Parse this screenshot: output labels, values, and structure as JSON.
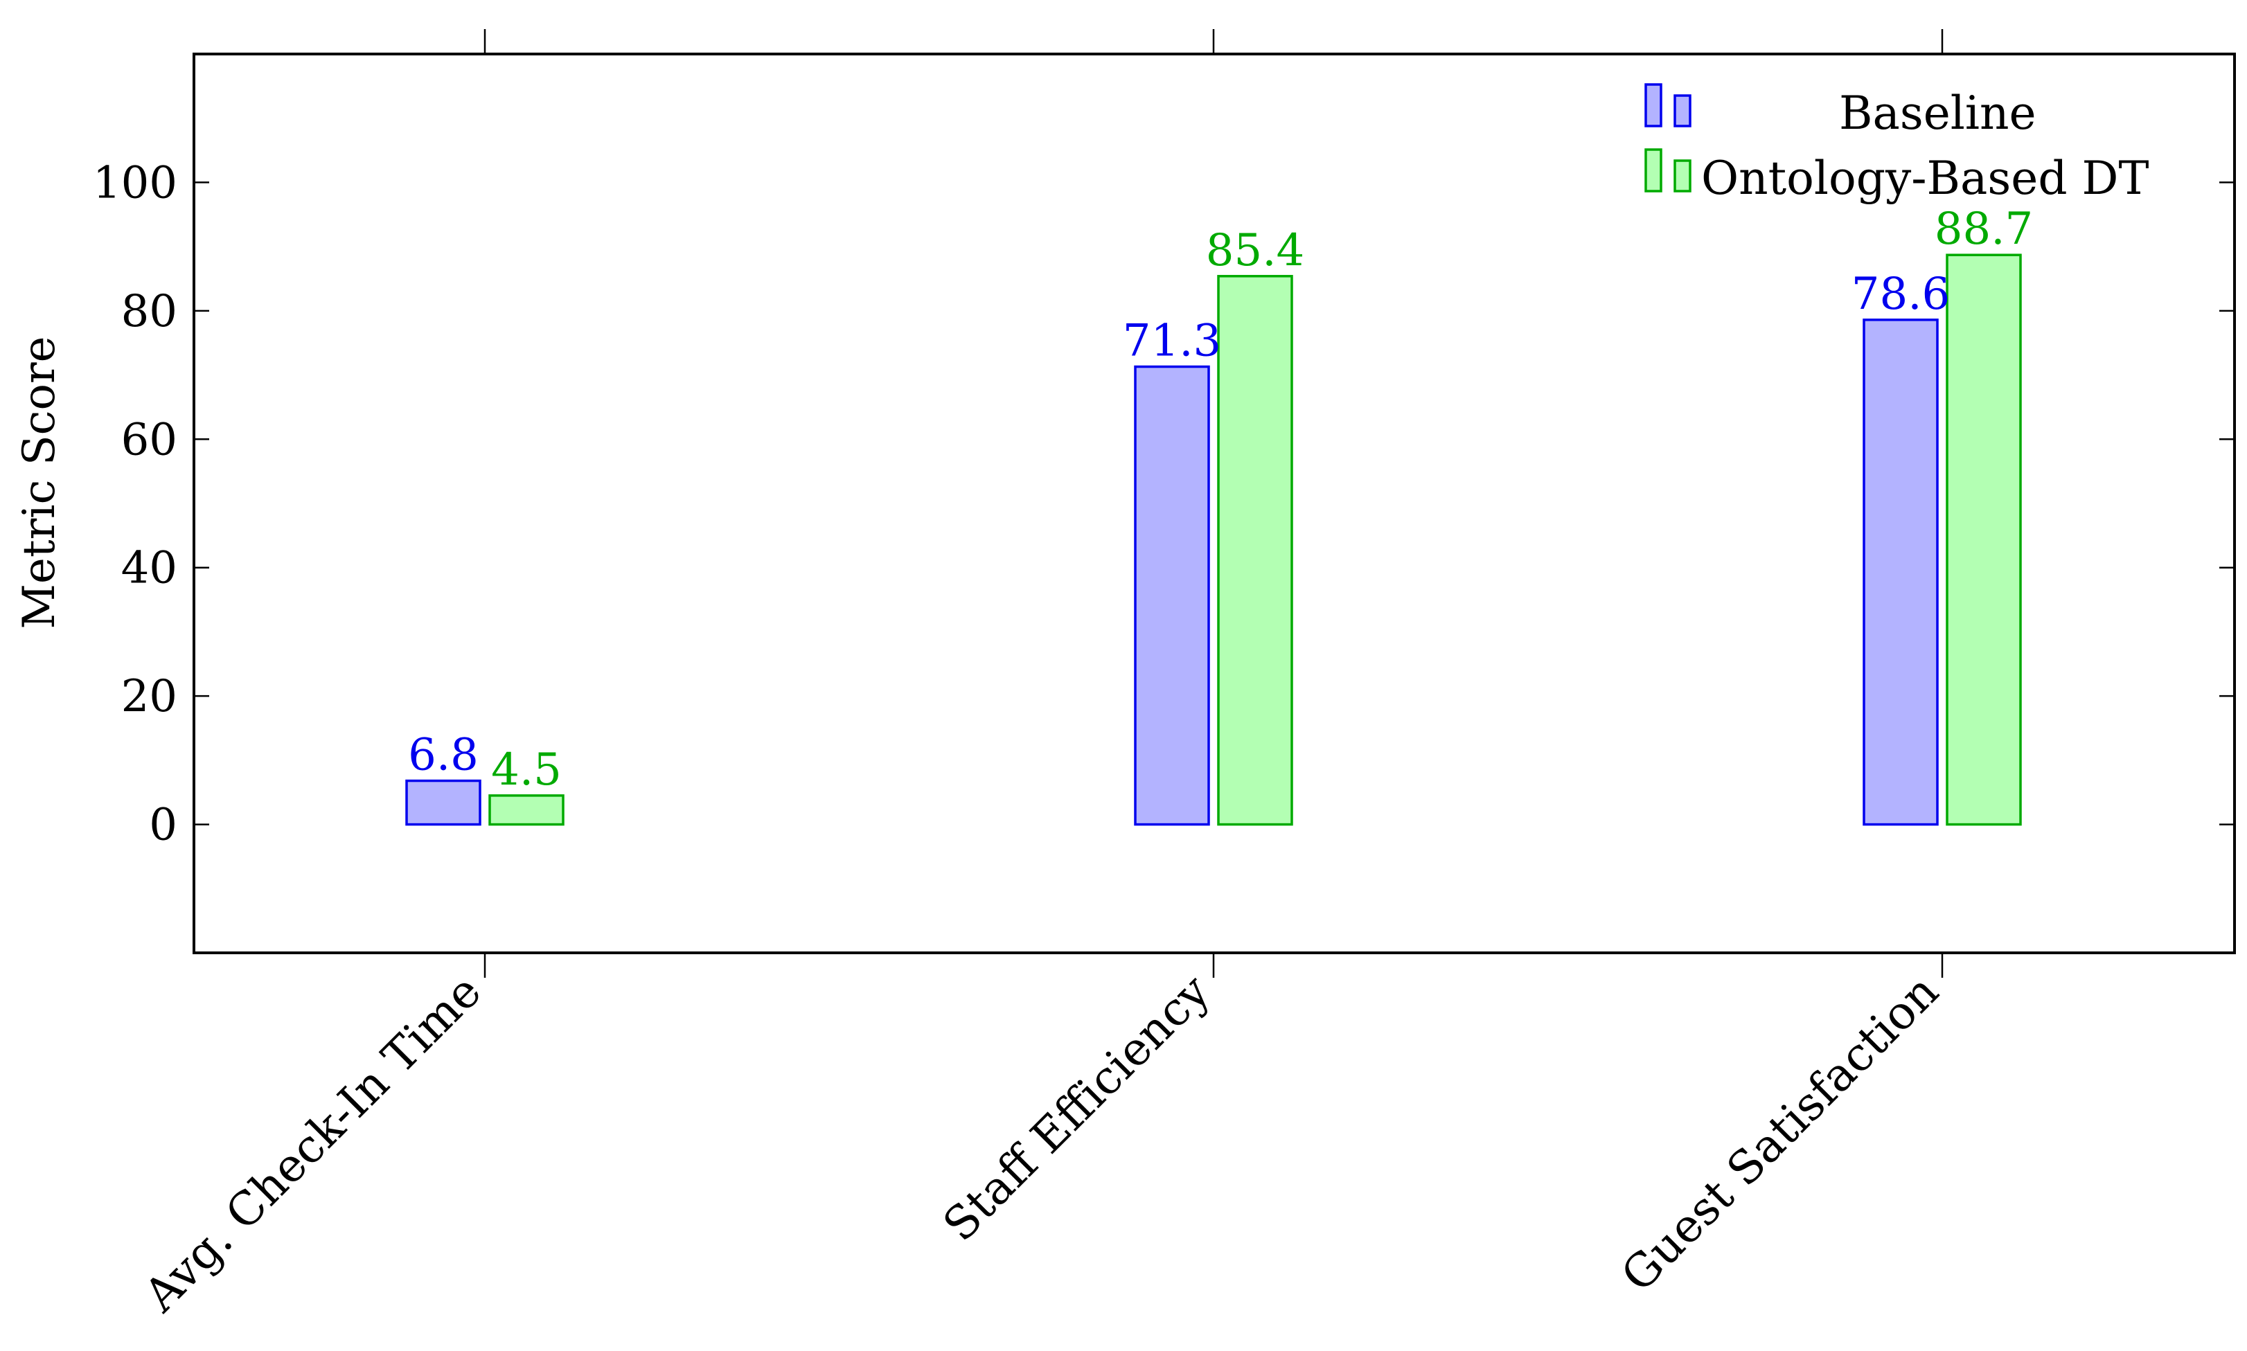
{
  "chart_data": {
    "type": "bar",
    "title": "",
    "xlabel": "",
    "ylabel": "Metric Score",
    "categories": [
      "Avg. Check-In Time",
      "Staff Efficiency",
      "Guest Satisfaction"
    ],
    "series": [
      {
        "name": "Baseline",
        "values": [
          6.8,
          71.3,
          78.6
        ],
        "stroke": "#0000ee",
        "fill": "#b3b3ff",
        "label_color": "#0000ee"
      },
      {
        "name": "Ontology-Based DT",
        "values": [
          4.5,
          85.4,
          88.7
        ],
        "stroke": "#00aa00",
        "fill": "#b3ffb3",
        "label_color": "#00aa00"
      }
    ],
    "ylim": [
      -20,
      120
    ],
    "yticks": [
      0,
      20,
      40,
      60,
      80,
      100
    ],
    "grid": false,
    "legend_position": "top-right",
    "data_labels": true
  }
}
